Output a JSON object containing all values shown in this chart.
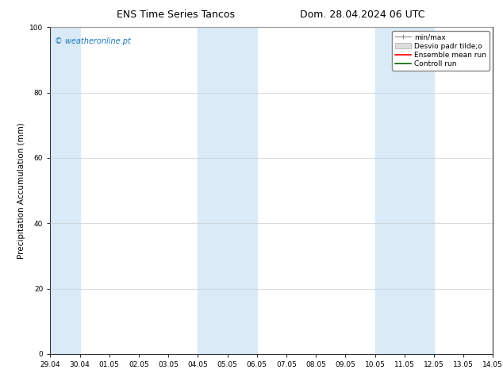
{
  "title_left": "ENS Time Series Tancos",
  "title_right": "Dom. 28.04.2024 06 UTC",
  "ylabel": "Precipitation Accumulation (mm)",
  "ylim": [
    0,
    100
  ],
  "yticks": [
    0,
    20,
    40,
    60,
    80,
    100
  ],
  "xtick_labels": [
    "29.04",
    "30.04",
    "01.05",
    "02.05",
    "03.05",
    "04.05",
    "05.05",
    "06.05",
    "07.05",
    "08.05",
    "09.05",
    "10.05",
    "11.05",
    "12.05",
    "13.05",
    "14.05"
  ],
  "watermark": "© weatheronline.pt",
  "watermark_color": "#1a7bbf",
  "background_color": "#ffffff",
  "shaded_regions": [
    {
      "xstart": 0,
      "xend": 1,
      "color": "#daeaf7"
    },
    {
      "xstart": 5,
      "xend": 7,
      "color": "#daeaf7"
    },
    {
      "xstart": 11,
      "xend": 13,
      "color": "#daeaf7"
    }
  ],
  "legend_items": [
    {
      "label": "min/max",
      "color": "#aaaaaa"
    },
    {
      "label": "Desvio padr tilde;o",
      "color": "#cccccc"
    },
    {
      "label": "Ensemble mean run",
      "color": "#ff0000"
    },
    {
      "label": "Controll run",
      "color": "#006400"
    }
  ],
  "title_fontsize": 9,
  "tick_fontsize": 6.5,
  "ylabel_fontsize": 7.5,
  "legend_fontsize": 6.5,
  "watermark_fontsize": 7
}
